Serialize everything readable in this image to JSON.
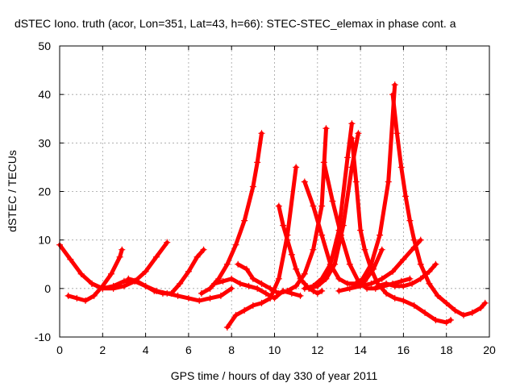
{
  "chart_data": {
    "type": "scatter",
    "title": "dSTEC Iono. truth (acor, Lon=351, Lat=43, h=66): STEC-STEC_elemax in phase cont. a",
    "xlabel": "GPS time / hours of day 330 of year 2011",
    "ylabel": "dSTEC  / TECUs",
    "xlim": [
      0,
      20
    ],
    "ylim": [
      -10,
      50
    ],
    "xticks": [
      0,
      2,
      4,
      6,
      8,
      10,
      12,
      14,
      16,
      18,
      20
    ],
    "yticks": [
      -10,
      0,
      10,
      20,
      30,
      40,
      50
    ],
    "grid": true,
    "marker": "+",
    "color": "#ff0000",
    "series": [
      {
        "x": [
          0.0,
          0.5,
          1.0,
          1.5,
          2.0,
          2.5,
          3.0,
          3.5,
          4.0,
          4.5,
          5.0,
          5.5,
          6.0,
          6.5,
          7.0,
          7.5,
          8.0
        ],
        "y": [
          9,
          6,
          3,
          1,
          0,
          0.5,
          1.5,
          1.5,
          0.5,
          -0.5,
          -1,
          -1.5,
          -2,
          -2.5,
          -2,
          -1.5,
          0
        ]
      },
      {
        "x": [
          0.4,
          0.8,
          1.2,
          1.6,
          2.0,
          2.4,
          2.8,
          2.9
        ],
        "y": [
          -1.5,
          -2,
          -2.5,
          -1.5,
          0.5,
          3,
          6.5,
          8
        ]
      },
      {
        "x": [
          1.5,
          2.0,
          2.5,
          3.0,
          3.5,
          4.0,
          4.5,
          5.0
        ],
        "y": [
          1,
          0,
          0,
          0.5,
          1.5,
          3.5,
          6.5,
          9.5
        ]
      },
      {
        "x": [
          3.2,
          3.6,
          4.0,
          4.4,
          4.8,
          5.2,
          5.6,
          6.0,
          6.4,
          6.7
        ],
        "y": [
          2,
          1.5,
          0.5,
          -0.5,
          -1,
          -1,
          1,
          3.5,
          6.5,
          8
        ]
      },
      {
        "x": [
          6.6,
          7.0,
          7.4,
          7.8,
          8.2,
          8.6,
          9.0,
          9.2,
          9.4
        ],
        "y": [
          -1,
          0,
          2,
          5,
          9,
          14,
          21,
          26,
          32
        ]
      },
      {
        "x": [
          7.8,
          8.2,
          8.6,
          9.0,
          9.4,
          9.8,
          10.2,
          10.6,
          11.0
        ],
        "y": [
          -8,
          -5.5,
          -4.5,
          -3.5,
          -3,
          -2,
          2,
          11,
          25
        ]
      },
      {
        "x": [
          7.2,
          7.6,
          8.0,
          8.4,
          8.8,
          9.2,
          9.6,
          10.0,
          10.4,
          10.8,
          11.2
        ],
        "y": [
          1,
          1.5,
          2,
          1,
          0.5,
          0,
          -1,
          -2,
          -0.5,
          -1,
          -1.5
        ]
      },
      {
        "x": [
          8.3,
          8.7,
          9.0,
          9.4,
          9.8,
          10.2,
          10.6,
          11.0,
          11.4,
          11.8,
          12.2,
          12.4
        ],
        "y": [
          5,
          4,
          2,
          1,
          0,
          -1,
          -0.5,
          0.5,
          3,
          8,
          17,
          33
        ]
      },
      {
        "x": [
          10.2,
          10.4,
          10.6,
          10.8,
          11.0,
          11.2,
          11.4,
          11.6,
          11.8,
          12.0,
          12.2
        ],
        "y": [
          17,
          13,
          10,
          7,
          4,
          2,
          1,
          0,
          -0.5,
          -1,
          -0.5
        ]
      },
      {
        "x": [
          11.4,
          11.8,
          12.2,
          12.6,
          13.0,
          13.4,
          13.8,
          14.2,
          14.6,
          15.0
        ],
        "y": [
          22,
          17,
          11,
          5,
          2,
          1,
          1,
          1.5,
          4,
          8
        ]
      },
      {
        "x": [
          11.6,
          12.0,
          12.4,
          12.8,
          13.2,
          13.6,
          13.9
        ],
        "y": [
          0,
          0.5,
          2,
          5,
          13,
          25,
          32
        ]
      },
      {
        "x": [
          12.3,
          12.7,
          13.1,
          13.5,
          13.9,
          14.3,
          14.7,
          15.1,
          15.5,
          15.9,
          16.3
        ],
        "y": [
          26,
          18,
          11,
          5,
          1.5,
          0,
          0,
          0.5,
          1,
          1.5,
          2
        ]
      },
      {
        "x": [
          11.4,
          11.8,
          12.2,
          12.6,
          13.0,
          13.4,
          13.6
        ],
        "y": [
          0,
          0.5,
          2,
          5,
          12,
          27,
          34
        ]
      },
      {
        "x": [
          13.6,
          13.8,
          14.0,
          14.2,
          14.5,
          14.8,
          15.2,
          15.6,
          16.0,
          16.5,
          17.0,
          17.5,
          18.0,
          18.2
        ],
        "y": [
          31,
          22,
          12,
          8,
          4,
          1,
          -1,
          -2,
          -2.5,
          -3.5,
          -5,
          -6.5,
          -7,
          -6.5
        ]
      },
      {
        "x": [
          13.7,
          14.1,
          14.5,
          14.9,
          15.3,
          15.6
        ],
        "y": [
          0.5,
          2,
          5,
          11,
          22,
          42
        ]
      },
      {
        "x": [
          15.5,
          15.7,
          15.9,
          16.1,
          16.3,
          16.5,
          16.8,
          17.2,
          17.6,
          18.0,
          18.4,
          18.8,
          19.2,
          19.6,
          19.8
        ],
        "y": [
          40,
          32,
          25,
          19,
          14,
          10,
          5,
          1,
          -1.5,
          -3,
          -4.5,
          -5.5,
          -5,
          -4,
          -3
        ]
      },
      {
        "x": [
          13.0,
          13.5,
          14.0,
          14.5,
          15.0,
          15.5,
          16.0,
          16.5,
          16.8
        ],
        "y": [
          -0.5,
          0,
          0.5,
          1,
          2,
          3.5,
          6,
          8.5,
          10
        ]
      },
      {
        "x": [
          14.8,
          15.2,
          15.6,
          16.0,
          16.4,
          16.8,
          17.2,
          17.5
        ],
        "y": [
          0.5,
          1,
          0.5,
          0.5,
          1,
          2,
          3.5,
          5
        ]
      }
    ]
  }
}
